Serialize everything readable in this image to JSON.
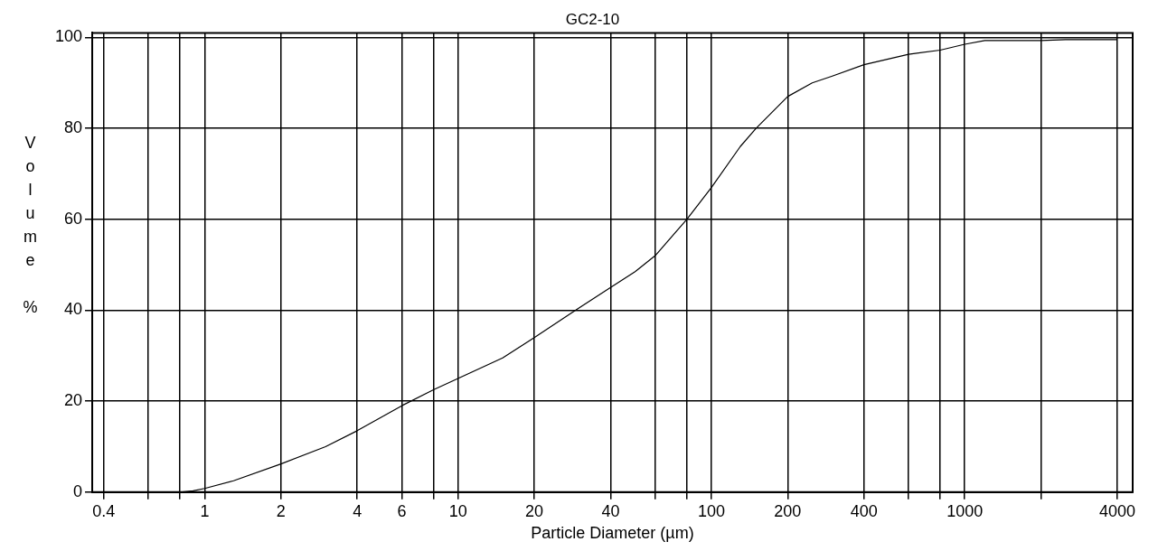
{
  "chart_data": {
    "type": "line",
    "title": "GC2-10",
    "xlabel": "Particle Diameter (µm)",
    "ylabel": "Volume %",
    "log": "x",
    "grid": true,
    "marker": "none",
    "line_style": "solid",
    "xlim": [
      0.36,
      4600
    ],
    "ylim": [
      0,
      101
    ],
    "xticks": [
      0.4,
      {
        "value": 0.6,
        "label": null
      },
      {
        "value": 0.8,
        "label": null
      },
      1,
      2,
      4,
      6,
      {
        "value": 8,
        "label": null
      },
      10,
      20,
      40,
      {
        "value": 60,
        "label": null
      },
      {
        "value": 80,
        "label": null
      },
      100,
      200,
      400,
      {
        "value": 600,
        "label": null
      },
      {
        "value": 800,
        "label": null
      },
      1000,
      {
        "value": 2000,
        "label": null
      },
      4000
    ],
    "yticks": [
      0,
      20,
      40,
      60,
      80,
      100
    ],
    "series": [
      {
        "color": "#000000",
        "x": [
          0.4,
          0.8,
          0.9,
          1,
          1.3,
          2,
          3,
          4,
          6,
          8,
          10,
          15,
          20,
          30,
          40,
          50,
          60,
          80,
          100,
          130,
          150,
          200,
          250,
          300,
          400,
          600,
          800,
          1000,
          1200,
          2000,
          2500,
          4000
        ],
        "values": [
          0,
          0,
          0.3,
          0.8,
          2.5,
          6.2,
          10,
          13.5,
          19,
          22.5,
          25,
          29.5,
          34,
          40.5,
          45,
          48.5,
          52,
          60,
          67,
          76,
          80,
          87,
          90,
          91.5,
          94,
          96.3,
          97.2,
          98.5,
          99.3,
          99.3,
          99.5,
          99.5
        ]
      }
    ]
  }
}
